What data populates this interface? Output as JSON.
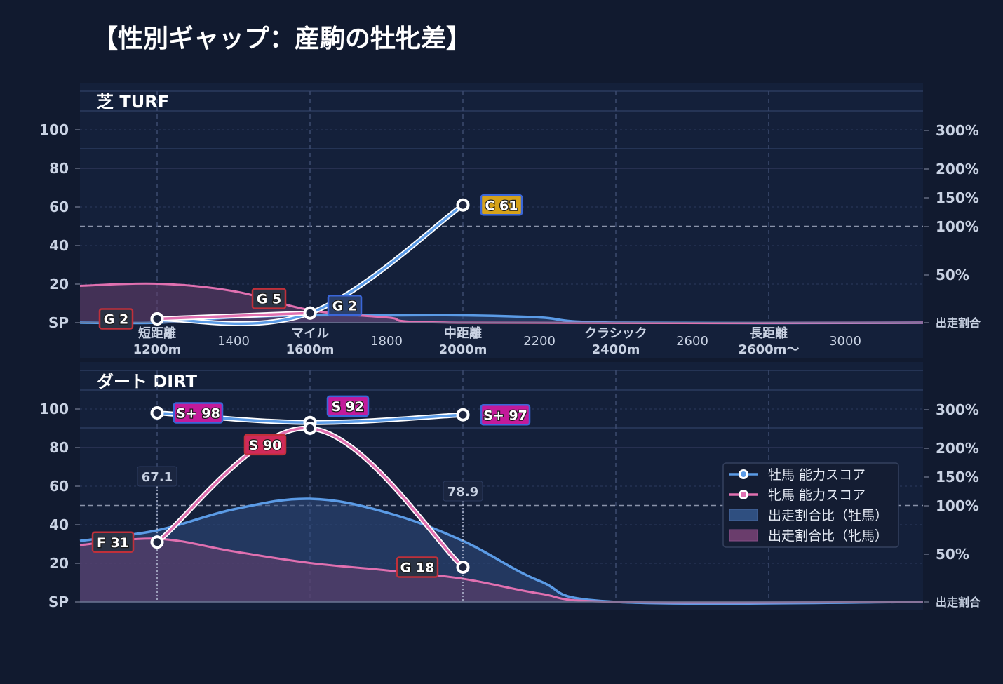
{
  "title": "【性別ギャップ：産駒の牡牝差】",
  "colors": {
    "background": "#111a2f",
    "panel": "#14203a",
    "male_line": "#5b9be6",
    "female_line": "#e070b0",
    "male_fill": "#2f4d80",
    "female_fill": "#6a3f6e"
  },
  "chart_data": [
    {
      "type": "line",
      "id": "turf",
      "title": "芝 TURF",
      "x_ticks": [
        {
          "x": 1200,
          "label": "短距離",
          "sub": "1200m",
          "major": true
        },
        {
          "x": 1400,
          "label": "1400",
          "major": false
        },
        {
          "x": 1600,
          "label": "マイル",
          "sub": "1600m",
          "major": true
        },
        {
          "x": 1800,
          "label": "1800",
          "major": false
        },
        {
          "x": 2000,
          "label": "中距離",
          "sub": "2000m",
          "major": true
        },
        {
          "x": 2200,
          "label": "2200",
          "major": false
        },
        {
          "x": 2400,
          "label": "クラシック",
          "sub": "2400m",
          "major": true
        },
        {
          "x": 2600,
          "label": "2600",
          "major": false
        },
        {
          "x": 2800,
          "label": "長距離",
          "sub": "2600m〜",
          "major": true
        },
        {
          "x": 3000,
          "label": "3000",
          "major": false
        }
      ],
      "xlim": [
        1100,
        3200
      ],
      "ylim": [
        0,
        120
      ],
      "y_ticks": [
        "SP",
        "20",
        "40",
        "60",
        "80",
        "100"
      ],
      "right_ticks": [
        "出走割合",
        "50%",
        "100%",
        "150%",
        "200%",
        "300%"
      ],
      "series": [
        {
          "name": "牡馬 能力スコア",
          "points": [
            {
              "x": 1200,
              "y": 2,
              "label": "G 2",
              "grade": "G"
            },
            {
              "x": 1600,
              "y": 5,
              "label": "",
              "grade": "G"
            },
            {
              "x": 2000,
              "y": 61,
              "label": "C 61",
              "grade": "C"
            }
          ]
        },
        {
          "name": "牝馬 能力スコア",
          "points": [
            {
              "x": 1200,
              "y": 2,
              "label": "G 2",
              "grade": "G"
            },
            {
              "x": 1600,
              "y": 5,
              "label": "G 5",
              "grade": "G"
            }
          ]
        }
      ],
      "share_labels": [],
      "share_male": [
        [
          1100,
          0
        ],
        [
          1200,
          0
        ],
        [
          1400,
          0.05
        ],
        [
          1600,
          0.07
        ],
        [
          1800,
          0.07
        ],
        [
          2000,
          0.07
        ],
        [
          2200,
          0.05
        ],
        [
          2400,
          0
        ],
        [
          3200,
          0
        ]
      ],
      "share_female": [
        [
          1100,
          0.35
        ],
        [
          1200,
          0.37
        ],
        [
          1400,
          0.3
        ],
        [
          1600,
          0.12
        ],
        [
          1800,
          0.05
        ],
        [
          2000,
          0
        ],
        [
          3200,
          0
        ]
      ]
    },
    {
      "type": "line",
      "id": "dirt",
      "title": "ダート DIRT",
      "x_ticks": [
        {
          "x": 1200,
          "major": true
        },
        {
          "x": 1600,
          "major": true
        },
        {
          "x": 2000,
          "major": true
        },
        {
          "x": 2400,
          "major": true
        },
        {
          "x": 2800,
          "major": true
        }
      ],
      "xlim": [
        1100,
        3200
      ],
      "ylim": [
        0,
        120
      ],
      "y_ticks": [
        "SP",
        "20",
        "40",
        "60",
        "80",
        "100"
      ],
      "right_ticks": [
        "出走割合",
        "50%",
        "100%",
        "150%",
        "200%",
        "300%"
      ],
      "series": [
        {
          "name": "牡馬 能力スコア",
          "points": [
            {
              "x": 1200,
              "y": 98,
              "label": "S+ 98",
              "grade": "S+"
            },
            {
              "x": 1600,
              "y": 93,
              "label": "",
              "grade": "S"
            },
            {
              "x": 2000,
              "y": 97,
              "label": "S+ 97",
              "grade": "S+"
            }
          ]
        },
        {
          "name": "牝馬 能力スコア",
          "points": [
            {
              "x": 1200,
              "y": 31,
              "label": "F 31",
              "grade": "F"
            },
            {
              "x": 1600,
              "y": 90,
              "label": "S 90",
              "grade": "S"
            },
            {
              "x": 2000,
              "y": 18,
              "label": "G 18",
              "grade": "G"
            }
          ]
        }
      ],
      "extra_labels": [
        {
          "x": 1650,
          "y": 92,
          "label": "S 92",
          "grade": "S"
        }
      ],
      "share_labels": [
        {
          "x": 1200,
          "value": "67.1"
        },
        {
          "x": 2000,
          "value": "78.9"
        }
      ],
      "share_male": [
        [
          1100,
          0.58
        ],
        [
          1200,
          0.68
        ],
        [
          1400,
          0.88
        ],
        [
          1600,
          0.98
        ],
        [
          1800,
          0.85
        ],
        [
          2000,
          0.58
        ],
        [
          2200,
          0.2
        ],
        [
          2400,
          0
        ],
        [
          3200,
          0
        ]
      ],
      "share_female": [
        [
          1100,
          0.54
        ],
        [
          1200,
          0.6
        ],
        [
          1400,
          0.48
        ],
        [
          1600,
          0.37
        ],
        [
          1800,
          0.3
        ],
        [
          2000,
          0.22
        ],
        [
          2200,
          0.08
        ],
        [
          2400,
          0
        ],
        [
          3200,
          0
        ]
      ]
    }
  ],
  "legend": {
    "placement": "right",
    "items": [
      {
        "label": "牡馬 能力スコア",
        "kind": "line-male"
      },
      {
        "label": "牝馬 能力スコア",
        "kind": "line-female"
      },
      {
        "label": "出走割合比（牡馬）",
        "kind": "fill-male"
      },
      {
        "label": "出走割合比（牝馬）",
        "kind": "fill-female"
      }
    ]
  },
  "grade_colors": {
    "S+": "#c31a9a",
    "S": "#c31a9a",
    "A": "#d94a3a",
    "B": "#e07a20",
    "C": "#d6a21a",
    "D": "#5a9a40",
    "E": "#3a6a9a",
    "F": "#2a3344",
    "G": "#2a3344"
  }
}
